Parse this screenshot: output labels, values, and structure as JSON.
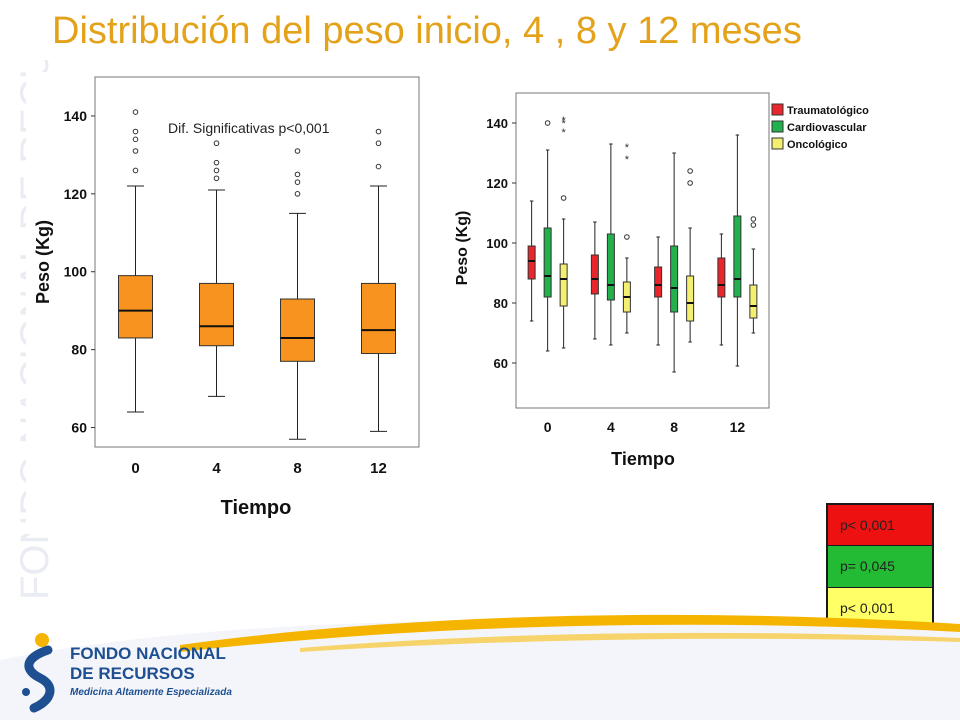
{
  "slide": {
    "title": "Distribución del peso inicio, 4 , 8 y 12 meses"
  },
  "watermark": {
    "text": "FONDO NACIONAL DE RECURSOS"
  },
  "logo": {
    "line1": "FONDO NACIONAL",
    "line2": "DE RECURSOS",
    "tagline": "Medicina Altamente Especializada"
  },
  "colors": {
    "title": "#e3a21a",
    "orange_box": "#f7931e",
    "red": "#e8262c",
    "green": "#22b14c",
    "yellow": "#f5ef70",
    "brand_blue": "#1d4f91",
    "footer_gold": "#f4b400"
  },
  "p_table": [
    {
      "text": "p< 0,001",
      "color": "#ee1111"
    },
    {
      "text": "p= 0,045",
      "color": "#22bb33"
    },
    {
      "text": "p< 0,001",
      "color": "#ffff66"
    }
  ],
  "chart_data": [
    {
      "type": "box",
      "annotation": "Dif. Significativas p<0,001",
      "xlabel": "Tiempo",
      "ylabel": "Peso (Kg)",
      "ylim": [
        55,
        150
      ],
      "yticks": [
        60,
        80,
        100,
        120,
        140
      ],
      "categories": [
        "0",
        "4",
        "8",
        "12"
      ],
      "boxes": [
        {
          "x": "0",
          "min": 64,
          "q1": 83,
          "median": 90,
          "q3": 99,
          "max": 122,
          "outliers": [
            126,
            131,
            134,
            136,
            141
          ]
        },
        {
          "x": "4",
          "min": 68,
          "q1": 81,
          "median": 86,
          "q3": 97,
          "max": 121,
          "outliers": [
            124,
            126,
            128,
            133
          ]
        },
        {
          "x": "8",
          "min": 57,
          "q1": 77,
          "median": 83,
          "q3": 93,
          "max": 115,
          "outliers": [
            120,
            123,
            125,
            131
          ]
        },
        {
          "x": "12",
          "min": 59,
          "q1": 79,
          "median": 85,
          "q3": 97,
          "max": 122,
          "outliers": [
            127,
            133,
            136
          ]
        }
      ]
    },
    {
      "type": "box",
      "xlabel": "Tiempo",
      "ylabel": "Peso (Kg)",
      "ylim": [
        45,
        150
      ],
      "yticks": [
        60,
        80,
        100,
        120,
        140
      ],
      "categories": [
        "0",
        "4",
        "8",
        "12"
      ],
      "legend": "top-right",
      "series": [
        {
          "name": "Traumatológico",
          "boxes": [
            {
              "x": "0",
              "min": 74,
              "q1": 88,
              "median": 94,
              "q3": 99,
              "max": 114,
              "outliers": [],
              "extremes": []
            },
            {
              "x": "4",
              "min": 68,
              "q1": 83,
              "median": 88,
              "q3": 96,
              "max": 107,
              "outliers": [],
              "extremes": []
            },
            {
              "x": "8",
              "min": 66,
              "q1": 82,
              "median": 86,
              "q3": 92,
              "max": 102,
              "outliers": [],
              "extremes": []
            },
            {
              "x": "12",
              "min": 66,
              "q1": 82,
              "median": 86,
              "q3": 95,
              "max": 103,
              "outliers": [],
              "extremes": []
            }
          ]
        },
        {
          "name": "Cardiovascular",
          "boxes": [
            {
              "x": "0",
              "min": 64,
              "q1": 82,
              "median": 89,
              "q3": 105,
              "max": 131,
              "outliers": [
                140
              ],
              "extremes": []
            },
            {
              "x": "4",
              "min": 66,
              "q1": 81,
              "median": 86,
              "q3": 103,
              "max": 133,
              "outliers": [],
              "extremes": []
            },
            {
              "x": "8",
              "min": 57,
              "q1": 77,
              "median": 85,
              "q3": 99,
              "max": 130,
              "outliers": [],
              "extremes": []
            },
            {
              "x": "12",
              "min": 59,
              "q1": 82,
              "median": 88,
              "q3": 109,
              "max": 136,
              "outliers": [],
              "extremes": []
            }
          ]
        },
        {
          "name": "Oncológico",
          "boxes": [
            {
              "x": "0",
              "min": 65,
              "q1": 79,
              "median": 88,
              "q3": 93,
              "max": 108,
              "outliers": [
                115
              ],
              "extremes": [
                137,
                140,
                141
              ]
            },
            {
              "x": "4",
              "min": 70,
              "q1": 77,
              "median": 82,
              "q3": 87,
              "max": 95,
              "outliers": [
                102
              ],
              "extremes": [
                128,
                132
              ]
            },
            {
              "x": "8",
              "min": 67,
              "q1": 74,
              "median": 80,
              "q3": 89,
              "max": 105,
              "outliers": [
                120,
                124
              ],
              "extremes": []
            },
            {
              "x": "12",
              "min": 70,
              "q1": 75,
              "median": 79,
              "q3": 86,
              "max": 98,
              "outliers": [
                106,
                108
              ],
              "extremes": []
            }
          ]
        }
      ]
    }
  ]
}
